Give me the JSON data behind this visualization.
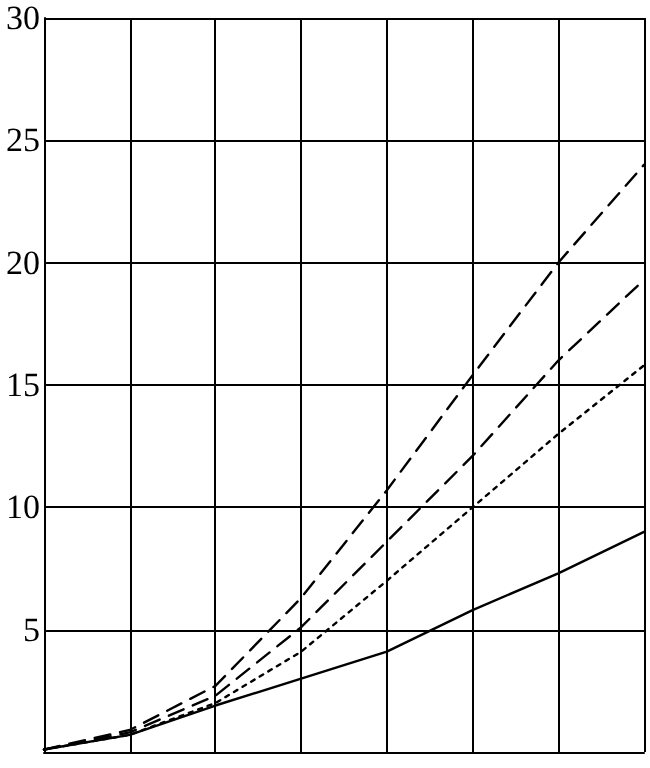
{
  "chart_data": {
    "type": "line",
    "categories": [
      null,
      null,
      null,
      null,
      null,
      null,
      null,
      null
    ],
    "series": [
      {
        "color": "#000000",
        "line_style": "solid",
        "values": [
          0.1,
          0.7,
          1.9,
          3.0,
          4.1,
          5.8,
          7.3,
          9.0
        ]
      },
      {
        "color": "#000000",
        "line_style": "dotted",
        "values": [
          0.1,
          0.7,
          2.0,
          4.1,
          7.0,
          10.0,
          13.0,
          15.8
        ]
      },
      {
        "color": "#000000",
        "line_style": "dashed",
        "values": [
          0.1,
          0.8,
          2.3,
          5.1,
          8.6,
          12.1,
          16.0,
          19.3
        ]
      },
      {
        "color": "#000000",
        "line_style": "dashed",
        "values": [
          0.1,
          0.9,
          2.7,
          6.3,
          10.7,
          15.4,
          20.0,
          24.0
        ]
      }
    ],
    "ylim": [
      0,
      30
    ],
    "yticks": [
      5,
      10,
      15,
      20,
      25,
      30
    ],
    "grid": true,
    "marker": "none"
  }
}
